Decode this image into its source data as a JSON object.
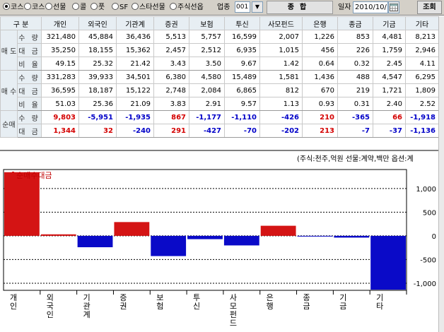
{
  "toolbar": {
    "radios": [
      {
        "label": "코스피",
        "selected": true
      },
      {
        "label": "코스닥",
        "selected": false
      },
      {
        "label": "선물",
        "selected": false
      },
      {
        "label": "콜",
        "selected": false
      },
      {
        "label": "풋",
        "selected": false
      },
      {
        "label": "SF",
        "selected": false
      },
      {
        "label": "스타선물",
        "selected": false
      },
      {
        "label": "주식선옵",
        "selected": false
      }
    ],
    "sector_label": "업종",
    "sector_code": "001",
    "sector_type": "종합",
    "date_label": "일자",
    "date_value": "2010/10/",
    "query_button": "조회"
  },
  "table": {
    "header": {
      "category": "구 분",
      "columns": [
        "개인",
        "외국인",
        "기관계",
        "증권",
        "보험",
        "투신",
        "사모펀드",
        "은행",
        "종금",
        "기금",
        "기타"
      ]
    },
    "groups": [
      {
        "label": "매 도",
        "rows": [
          {
            "label": "수 량",
            "values": [
              "321,480",
              "45,884",
              "36,436",
              "5,513",
              "5,757",
              "16,599",
              "2,007",
              "1,226",
              "853",
              "4,481",
              "8,213"
            ]
          },
          {
            "label": "대 금",
            "values": [
              "35,250",
              "18,155",
              "15,362",
              "2,457",
              "2,512",
              "6,935",
              "1,015",
              "456",
              "226",
              "1,759",
              "2,946"
            ]
          },
          {
            "label": "비 율",
            "values": [
              "49.15",
              "25.32",
              "21.42",
              "3.43",
              "3.50",
              "9.67",
              "1.42",
              "0.64",
              "0.32",
              "2.45",
              "4.11"
            ]
          }
        ]
      },
      {
        "label": "매 수",
        "rows": [
          {
            "label": "수 량",
            "values": [
              "331,283",
              "39,933",
              "34,501",
              "6,380",
              "4,580",
              "15,489",
              "1,581",
              "1,436",
              "488",
              "4,547",
              "6,295"
            ]
          },
          {
            "label": "대 금",
            "values": [
              "36,595",
              "18,187",
              "15,122",
              "2,748",
              "2,084",
              "6,865",
              "812",
              "670",
              "219",
              "1,721",
              "1,809"
            ]
          },
          {
            "label": "비 율",
            "values": [
              "51.03",
              "25.36",
              "21.09",
              "3.83",
              "2.91",
              "9.57",
              "1.13",
              "0.93",
              "0.31",
              "2.40",
              "2.52"
            ]
          }
        ]
      },
      {
        "label": "순매",
        "rows": [
          {
            "label": "수 량",
            "values": [
              "9,803",
              "-5,951",
              "-1,935",
              "867",
              "-1,177",
              "-1,110",
              "-426",
              "210",
              "-365",
              "66",
              "-1,918"
            ]
          },
          {
            "label": "대 금",
            "values": [
              "1,344",
              "32",
              "-240",
              "291",
              "-427",
              "-70",
              "-202",
              "213",
              "-7",
              "-37",
              "-1,136"
            ]
          }
        ]
      }
    ]
  },
  "note": "(주식:천주,억원 선물:계약,백만 옵션:계",
  "chart_data": {
    "type": "bar",
    "title": "",
    "legend": "순매수대금",
    "categories": [
      "개인",
      "외국인",
      "기관계",
      "증권",
      "보험",
      "투신",
      "사모펀드",
      "은행",
      "종금",
      "기금",
      "기타"
    ],
    "series": [
      {
        "name": "순매수대금",
        "values": [
          1344,
          32,
          -240,
          291,
          -427,
          -70,
          -202,
          213,
          -7,
          -37,
          -1136
        ]
      }
    ],
    "ylim": [
      -1150,
      1400
    ],
    "yticks": [
      {
        "value": 1000,
        "label": "1,000"
      },
      {
        "value": 500,
        "label": "500"
      },
      {
        "value": 0,
        "label": "0"
      },
      {
        "value": -500,
        "label": "-500"
      },
      {
        "value": -1000,
        "label": "-1,000"
      }
    ],
    "colors": {
      "positive": "#d41414",
      "negative": "#0a0ac8"
    },
    "grid": true
  }
}
